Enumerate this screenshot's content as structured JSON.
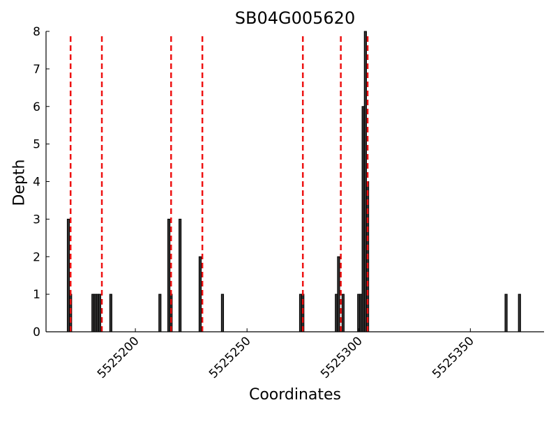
{
  "chart_data": {
    "type": "bar",
    "title": "SB04G005620",
    "xlabel": "Coordinates",
    "ylabel": "Depth",
    "xlim": [
      5525160,
      5525383
    ],
    "ylim": [
      0,
      8
    ],
    "x_ticks": [
      5525200,
      5525250,
      5525300,
      5525350
    ],
    "y_ticks": [
      0,
      1,
      2,
      3,
      4,
      5,
      6,
      7,
      8
    ],
    "grid": false,
    "bar_color": "#333333",
    "bars": [
      {
        "x": 5525170,
        "y": 3
      },
      {
        "x": 5525171,
        "y": 1
      },
      {
        "x": 5525181,
        "y": 1
      },
      {
        "x": 5525182,
        "y": 1
      },
      {
        "x": 5525183,
        "y": 1
      },
      {
        "x": 5525184,
        "y": 1
      },
      {
        "x": 5525189,
        "y": 1
      },
      {
        "x": 5525211,
        "y": 1
      },
      {
        "x": 5525215,
        "y": 3
      },
      {
        "x": 5525216,
        "y": 1
      },
      {
        "x": 5525220,
        "y": 3
      },
      {
        "x": 5525229,
        "y": 2
      },
      {
        "x": 5525239,
        "y": 1
      },
      {
        "x": 5525274,
        "y": 1
      },
      {
        "x": 5525275,
        "y": 1
      },
      {
        "x": 5525290,
        "y": 1
      },
      {
        "x": 5525291,
        "y": 2
      },
      {
        "x": 5525293,
        "y": 1
      },
      {
        "x": 5525300,
        "y": 1
      },
      {
        "x": 5525301,
        "y": 1
      },
      {
        "x": 5525302,
        "y": 6
      },
      {
        "x": 5525303,
        "y": 8
      },
      {
        "x": 5525304,
        "y": 4
      },
      {
        "x": 5525366,
        "y": 1
      },
      {
        "x": 5525372,
        "y": 1
      }
    ],
    "markers": {
      "style": "red dashed vertical lines",
      "color": "#ee1111",
      "x": [
        5525171,
        5525185,
        5525216,
        5525230,
        5525275,
        5525292,
        5525304
      ]
    }
  }
}
